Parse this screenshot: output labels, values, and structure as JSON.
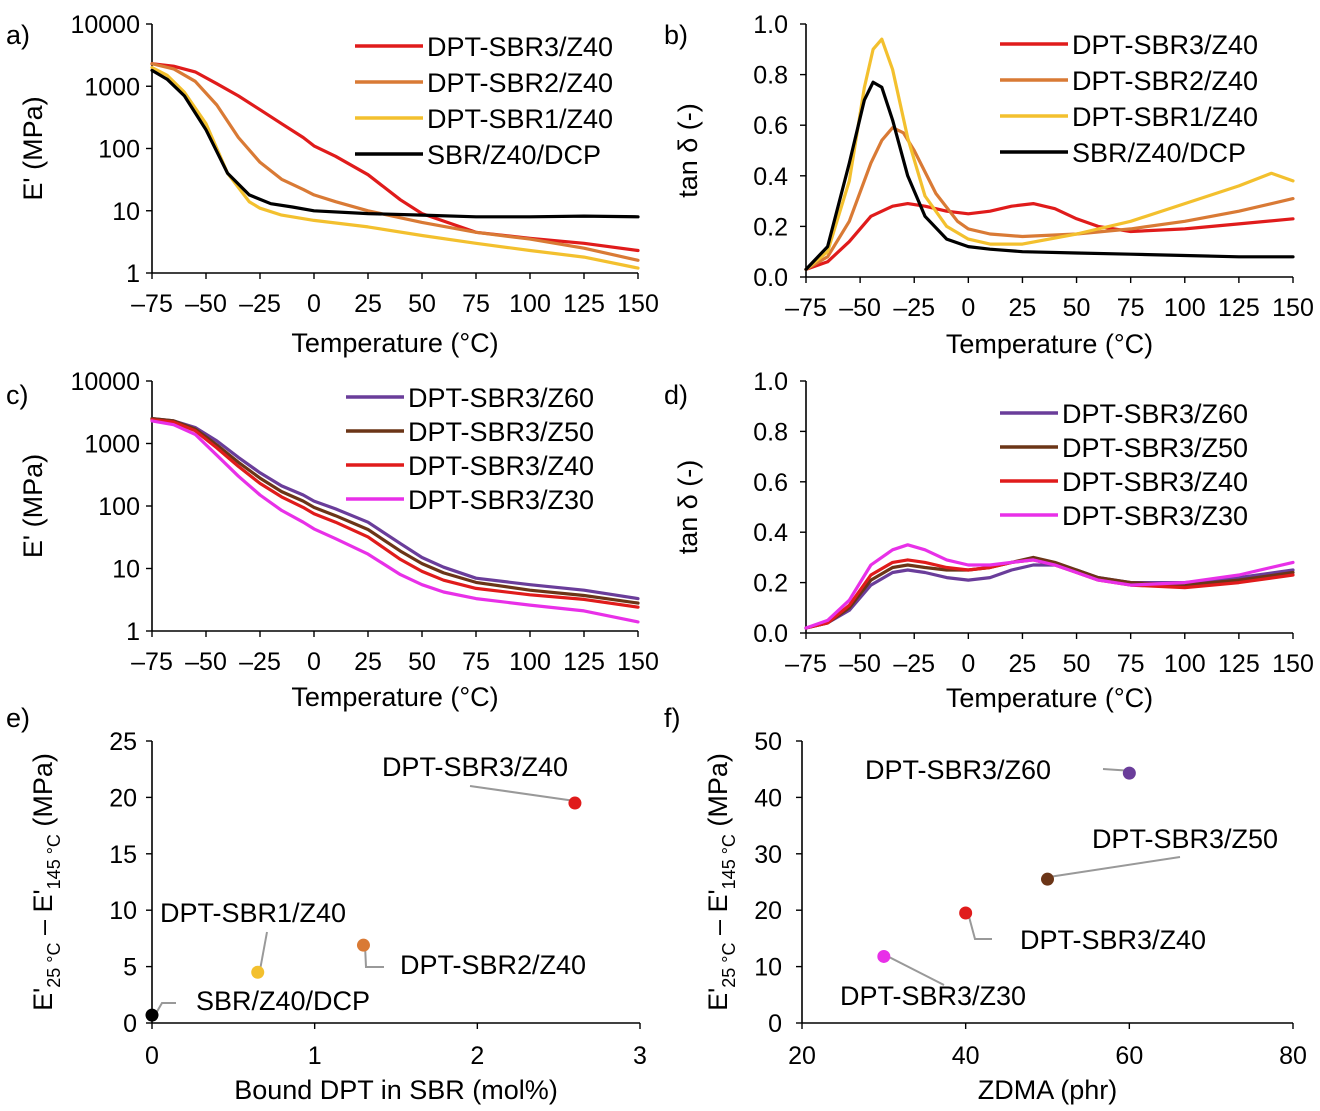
{
  "colors": {
    "DPT-SBR3/Z40": "#e01b1b",
    "DPT-SBR2/Z40": "#d97a35",
    "DPT-SBR1/Z40": "#f3c02e",
    "SBR/Z40/DCP": "#000000",
    "DPT-SBR3/Z60": "#6a3d9a",
    "DPT-SBR3/Z50": "#6b3517",
    "DPT-SBR3/Z30": "#e830e8",
    "leader": "#999999"
  },
  "chart_data": [
    {
      "panel": "a)",
      "type": "line",
      "xlabel": "Temperature (°C)",
      "ylabel": "E' (MPa)",
      "xlim": [
        -75,
        150
      ],
      "ylim": [
        1,
        10000
      ],
      "yscale": "log",
      "xticks": [
        "–75",
        "–50",
        "–25",
        "0",
        "25",
        "50",
        "75",
        "100",
        "125",
        "150"
      ],
      "yticks": [
        "1",
        "10",
        "100",
        "1000",
        "10000"
      ],
      "legend_position": "top-right",
      "series": [
        {
          "name": "DPT-SBR3/Z40",
          "x": [
            -75,
            -65,
            -55,
            -45,
            -35,
            -25,
            -15,
            -5,
            0,
            10,
            25,
            40,
            50,
            75,
            100,
            125,
            150
          ],
          "y": [
            2300,
            2100,
            1700,
            1100,
            700,
            420,
            250,
            150,
            110,
            75,
            38,
            15,
            9,
            4.5,
            3.6,
            3.0,
            2.3
          ]
        },
        {
          "name": "DPT-SBR2/Z40",
          "x": [
            -75,
            -65,
            -55,
            -45,
            -35,
            -25,
            -15,
            -5,
            0,
            10,
            25,
            50,
            75,
            100,
            125,
            150
          ],
          "y": [
            2300,
            1900,
            1200,
            500,
            150,
            60,
            32,
            22,
            18,
            14,
            10,
            6.5,
            4.5,
            3.5,
            2.5,
            1.6
          ]
        },
        {
          "name": "DPT-SBR1/Z40",
          "x": [
            -75,
            -68,
            -60,
            -50,
            -40,
            -30,
            -25,
            -15,
            0,
            25,
            50,
            75,
            100,
            125,
            150
          ],
          "y": [
            2000,
            1500,
            800,
            250,
            40,
            14,
            11,
            8.5,
            7,
            5.5,
            4,
            3,
            2.3,
            1.8,
            1.2
          ]
        },
        {
          "name": "SBR/Z40/DCP",
          "x": [
            -75,
            -68,
            -60,
            -50,
            -40,
            -30,
            -20,
            -10,
            0,
            25,
            50,
            75,
            100,
            125,
            150
          ],
          "y": [
            1800,
            1300,
            700,
            200,
            40,
            18,
            13,
            11.5,
            10,
            9,
            8.5,
            8,
            8,
            8.2,
            8
          ]
        }
      ]
    },
    {
      "panel": "b)",
      "type": "line",
      "xlabel": "Temperature (°C)",
      "ylabel": "tan δ (-)",
      "xlim": [
        -75,
        150
      ],
      "ylim": [
        0,
        1
      ],
      "xticks": [
        "–75",
        "–50",
        "–25",
        "0",
        "25",
        "50",
        "75",
        "100",
        "125",
        "150"
      ],
      "yticks": [
        "0.0",
        "0.2",
        "0.4",
        "0.6",
        "0.8",
        "1.0"
      ],
      "legend_position": "top-right",
      "series": [
        {
          "name": "DPT-SBR3/Z40",
          "x": [
            -75,
            -65,
            -55,
            -45,
            -35,
            -28,
            -20,
            -10,
            0,
            10,
            20,
            30,
            40,
            50,
            60,
            75,
            100,
            125,
            150
          ],
          "y": [
            0.03,
            0.06,
            0.14,
            0.24,
            0.28,
            0.29,
            0.28,
            0.26,
            0.25,
            0.26,
            0.28,
            0.29,
            0.27,
            0.23,
            0.2,
            0.18,
            0.19,
            0.21,
            0.23
          ]
        },
        {
          "name": "DPT-SBR2/Z40",
          "x": [
            -75,
            -65,
            -55,
            -45,
            -40,
            -35,
            -30,
            -25,
            -15,
            -5,
            0,
            10,
            25,
            50,
            75,
            100,
            125,
            150
          ],
          "y": [
            0.03,
            0.08,
            0.22,
            0.45,
            0.54,
            0.59,
            0.57,
            0.5,
            0.33,
            0.22,
            0.19,
            0.17,
            0.16,
            0.17,
            0.19,
            0.22,
            0.26,
            0.31
          ]
        },
        {
          "name": "DPT-SBR1/Z40",
          "x": [
            -75,
            -65,
            -55,
            -48,
            -44,
            -40,
            -35,
            -28,
            -20,
            -10,
            0,
            10,
            25,
            50,
            75,
            100,
            125,
            140,
            150
          ],
          "y": [
            0.03,
            0.1,
            0.38,
            0.75,
            0.9,
            0.94,
            0.82,
            0.55,
            0.32,
            0.2,
            0.15,
            0.13,
            0.13,
            0.17,
            0.22,
            0.29,
            0.36,
            0.41,
            0.38
          ]
        },
        {
          "name": "SBR/Z40/DCP",
          "x": [
            -75,
            -65,
            -55,
            -48,
            -44,
            -40,
            -35,
            -28,
            -20,
            -10,
            0,
            10,
            25,
            50,
            75,
            100,
            125,
            150
          ],
          "y": [
            0.03,
            0.12,
            0.45,
            0.7,
            0.77,
            0.75,
            0.62,
            0.4,
            0.24,
            0.15,
            0.12,
            0.11,
            0.1,
            0.095,
            0.09,
            0.085,
            0.08,
            0.08
          ]
        }
      ]
    },
    {
      "panel": "c)",
      "type": "line",
      "xlabel": "Temperature (°C)",
      "ylabel": "E' (MPa)",
      "xlim": [
        -75,
        150
      ],
      "ylim": [
        1,
        10000
      ],
      "yscale": "log",
      "xticks": [
        "–75",
        "–50",
        "–25",
        "0",
        "25",
        "50",
        "75",
        "100",
        "125",
        "150"
      ],
      "yticks": [
        "1",
        "10",
        "100",
        "1000",
        "10000"
      ],
      "legend_position": "top-right",
      "series": [
        {
          "name": "DPT-SBR3/Z60",
          "x": [
            -75,
            -65,
            -55,
            -45,
            -35,
            -25,
            -15,
            -5,
            0,
            10,
            25,
            40,
            50,
            60,
            75,
            100,
            125,
            150
          ],
          "y": [
            2500,
            2300,
            1800,
            1100,
            600,
            340,
            210,
            150,
            120,
            90,
            55,
            25,
            15,
            10.5,
            7,
            5.5,
            4.5,
            3.3
          ]
        },
        {
          "name": "DPT-SBR3/Z50",
          "x": [
            -75,
            -65,
            -55,
            -45,
            -35,
            -25,
            -15,
            -5,
            0,
            10,
            25,
            40,
            50,
            60,
            75,
            100,
            125,
            150
          ],
          "y": [
            2500,
            2300,
            1700,
            950,
            500,
            280,
            170,
            120,
            95,
            70,
            42,
            19,
            12,
            8.5,
            6,
            4.5,
            3.7,
            2.8
          ]
        },
        {
          "name": "DPT-SBR3/Z40",
          "x": [
            -75,
            -65,
            -55,
            -45,
            -35,
            -25,
            -15,
            -5,
            0,
            10,
            25,
            40,
            50,
            60,
            75,
            100,
            125,
            150
          ],
          "y": [
            2400,
            2200,
            1600,
            850,
            430,
            230,
            140,
            95,
            75,
            55,
            32,
            14,
            9,
            6.5,
            4.8,
            3.8,
            3.2,
            2.4
          ]
        },
        {
          "name": "DPT-SBR3/Z30",
          "x": [
            -75,
            -65,
            -55,
            -45,
            -35,
            -25,
            -15,
            -5,
            0,
            10,
            25,
            40,
            50,
            60,
            75,
            100,
            125,
            150
          ],
          "y": [
            2300,
            2000,
            1400,
            650,
            300,
            150,
            85,
            55,
            43,
            30,
            17,
            8,
            5.5,
            4.2,
            3.3,
            2.6,
            2.1,
            1.4
          ]
        }
      ]
    },
    {
      "panel": "d)",
      "type": "line",
      "xlabel": "Temperature (°C)",
      "ylabel": "tan δ (-)",
      "xlim": [
        -75,
        150
      ],
      "ylim": [
        0,
        1
      ],
      "xticks": [
        "–75",
        "–50",
        "–25",
        "0",
        "25",
        "50",
        "75",
        "100",
        "125",
        "150"
      ],
      "yticks": [
        "0.0",
        "0.2",
        "0.4",
        "0.6",
        "0.8",
        "1.0"
      ],
      "legend_position": "top-right",
      "series": [
        {
          "name": "DPT-SBR3/Z60",
          "x": [
            -75,
            -65,
            -55,
            -45,
            -35,
            -28,
            -20,
            -10,
            0,
            10,
            20,
            30,
            40,
            50,
            60,
            75,
            100,
            125,
            150
          ],
          "y": [
            0.02,
            0.04,
            0.09,
            0.19,
            0.24,
            0.25,
            0.24,
            0.22,
            0.21,
            0.22,
            0.25,
            0.27,
            0.27,
            0.25,
            0.22,
            0.2,
            0.2,
            0.22,
            0.25
          ]
        },
        {
          "name": "DPT-SBR3/Z50",
          "x": [
            -75,
            -65,
            -55,
            -45,
            -35,
            -28,
            -20,
            -10,
            0,
            10,
            20,
            30,
            40,
            50,
            60,
            75,
            100,
            125,
            150
          ],
          "y": [
            0.02,
            0.04,
            0.1,
            0.21,
            0.26,
            0.27,
            0.26,
            0.25,
            0.25,
            0.26,
            0.28,
            0.3,
            0.28,
            0.25,
            0.22,
            0.2,
            0.19,
            0.21,
            0.24
          ]
        },
        {
          "name": "DPT-SBR3/Z40",
          "x": [
            -75,
            -65,
            -55,
            -45,
            -35,
            -28,
            -20,
            -10,
            0,
            10,
            20,
            30,
            40,
            50,
            60,
            75,
            100,
            125,
            150
          ],
          "y": [
            0.02,
            0.04,
            0.11,
            0.23,
            0.28,
            0.29,
            0.28,
            0.26,
            0.25,
            0.26,
            0.28,
            0.29,
            0.27,
            0.24,
            0.21,
            0.19,
            0.18,
            0.2,
            0.23
          ]
        },
        {
          "name": "DPT-SBR3/Z30",
          "x": [
            -75,
            -65,
            -55,
            -45,
            -35,
            -28,
            -20,
            -10,
            0,
            10,
            20,
            30,
            40,
            50,
            60,
            75,
            100,
            125,
            150
          ],
          "y": [
            0.02,
            0.05,
            0.13,
            0.27,
            0.33,
            0.35,
            0.33,
            0.29,
            0.27,
            0.27,
            0.28,
            0.29,
            0.27,
            0.24,
            0.21,
            0.19,
            0.2,
            0.23,
            0.28
          ]
        }
      ]
    },
    {
      "panel": "e)",
      "type": "scatter",
      "xlabel": "Bound DPT in SBR (mol%)",
      "ylabel_main": "E'",
      "ylabel_sub1": "25 °C",
      "ylabel_mid": " – E'",
      "ylabel_sub2": "145 °C",
      "ylabel_unit": " (MPa)",
      "xlim": [
        0,
        3
      ],
      "ylim": [
        0,
        25
      ],
      "xticks": [
        "0",
        "1",
        "2",
        "3"
      ],
      "yticks": [
        "0",
        "5",
        "10",
        "15",
        "20",
        "25"
      ],
      "points": [
        {
          "label": "DPT-SBR3/Z40",
          "x": 2.6,
          "y": 19.5,
          "color_key": "DPT-SBR3/Z40"
        },
        {
          "label": "DPT-SBR2/Z40",
          "x": 1.3,
          "y": 6.9,
          "color_key": "DPT-SBR2/Z40"
        },
        {
          "label": "DPT-SBR1/Z40",
          "x": 0.65,
          "y": 4.5,
          "color_key": "DPT-SBR1/Z40"
        },
        {
          "label": "SBR/Z40/DCP",
          "x": 0.0,
          "y": 0.7,
          "color_key": "SBR/Z40/DCP"
        }
      ]
    },
    {
      "panel": "f)",
      "type": "scatter",
      "xlabel": "ZDMA (phr)",
      "ylabel_main": "E'",
      "ylabel_sub1": "25 °C",
      "ylabel_mid": " – E'",
      "ylabel_sub2": "145 °C",
      "ylabel_unit": " (MPa)",
      "xlim": [
        20,
        80
      ],
      "ylim": [
        0,
        50
      ],
      "xticks": [
        "20",
        "40",
        "60",
        "80"
      ],
      "yticks": [
        "0",
        "10",
        "20",
        "30",
        "40",
        "50"
      ],
      "points": [
        {
          "label": "DPT-SBR3/Z60",
          "x": 60,
          "y": 44.3,
          "color_key": "DPT-SBR3/Z60"
        },
        {
          "label": "DPT-SBR3/Z50",
          "x": 50,
          "y": 25.5,
          "color_key": "DPT-SBR3/Z50"
        },
        {
          "label": "DPT-SBR3/Z40",
          "x": 40,
          "y": 19.5,
          "color_key": "DPT-SBR3/Z40"
        },
        {
          "label": "DPT-SBR3/Z30",
          "x": 30,
          "y": 11.8,
          "color_key": "DPT-SBR3/Z30"
        }
      ]
    }
  ]
}
